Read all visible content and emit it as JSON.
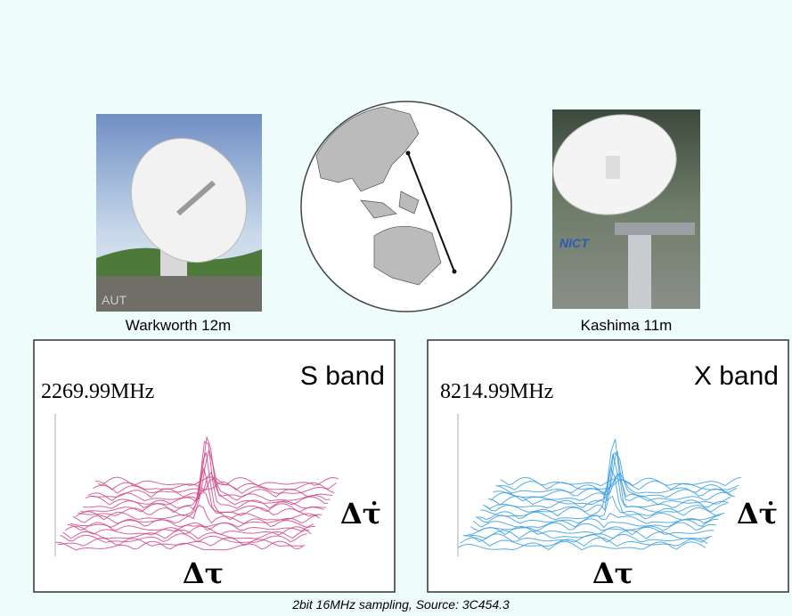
{
  "stations": [
    {
      "caption": "Warkworth 12m",
      "logo": "AUT"
    },
    {
      "caption": "Kashima 11m",
      "logo": "NICT"
    }
  ],
  "panels": [
    {
      "band": "S band",
      "frequency": "2269.99MHz",
      "rate_label": "Δτ̇",
      "delay_label": "Δτ"
    },
    {
      "band": "X band",
      "frequency": "8214.99MHz",
      "rate_label": "Δτ̇",
      "delay_label": "Δτ"
    }
  ],
  "footer": "2bit 16MHz sampling, Source: 3C454.3"
}
